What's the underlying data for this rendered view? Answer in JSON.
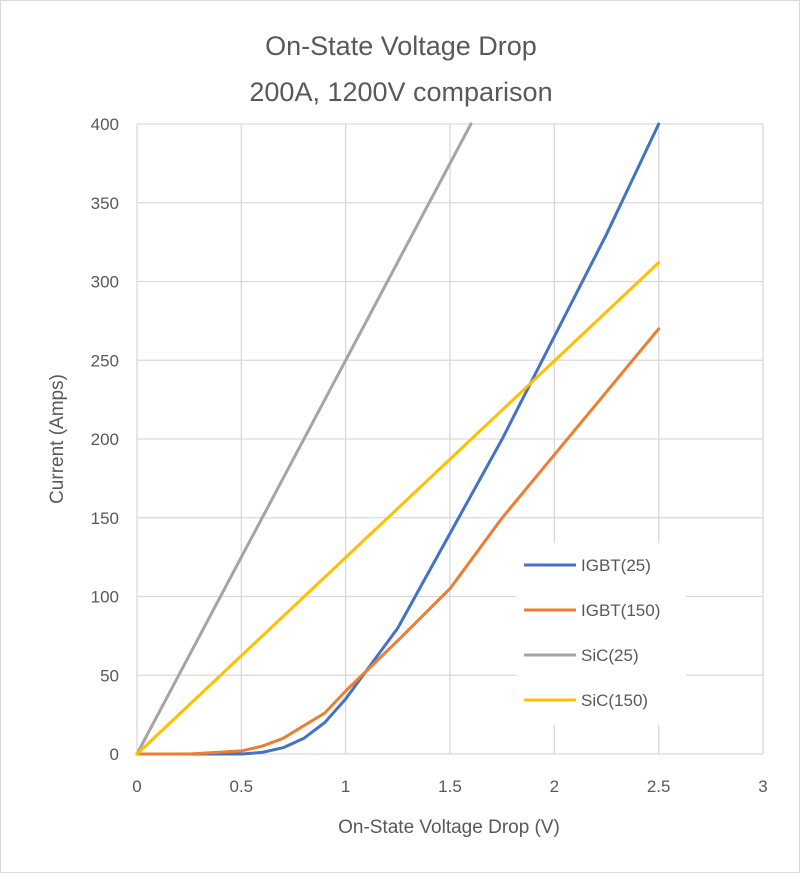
{
  "chart_data": {
    "type": "line",
    "title": "On-State Voltage Drop",
    "subtitle": "200A, 1200V comparison",
    "xlabel": "On-State Voltage Drop (V)",
    "ylabel": "Current (Amps)",
    "xlim": [
      0,
      3
    ],
    "ylim": [
      0,
      400
    ],
    "xticks": [
      "0",
      "0.5",
      "1",
      "1.5",
      "2",
      "2.5",
      "3"
    ],
    "yticks": [
      "0",
      "50",
      "100",
      "150",
      "200",
      "250",
      "300",
      "350",
      "400"
    ],
    "grid": true,
    "legend_position": "bottom-right",
    "series": [
      {
        "name": "IGBT(25)",
        "color": "#4472c4",
        "x": [
          0,
          0.5,
          0.6,
          0.7,
          0.8,
          0.9,
          1.0,
          1.25,
          1.5,
          1.75,
          2.0,
          2.25,
          2.5
        ],
        "y": [
          0,
          0,
          1,
          4,
          10,
          20,
          35,
          80,
          140,
          200,
          265,
          330,
          400
        ]
      },
      {
        "name": "IGBT(150)",
        "color": "#ed7d31",
        "x": [
          0,
          0.25,
          0.5,
          0.6,
          0.7,
          0.8,
          0.9,
          1.0,
          1.25,
          1.5,
          1.75,
          2.0,
          2.25,
          2.5
        ],
        "y": [
          0,
          0,
          2,
          5,
          10,
          18,
          26,
          40,
          72,
          105,
          150,
          190,
          230,
          270
        ]
      },
      {
        "name": "SiC(25)",
        "color": "#a5a5a5",
        "x": [
          0,
          1.6
        ],
        "y": [
          0,
          400
        ]
      },
      {
        "name": "SiC(150)",
        "color": "#ffc000",
        "x": [
          0,
          2.5
        ],
        "y": [
          0,
          312
        ]
      }
    ]
  }
}
